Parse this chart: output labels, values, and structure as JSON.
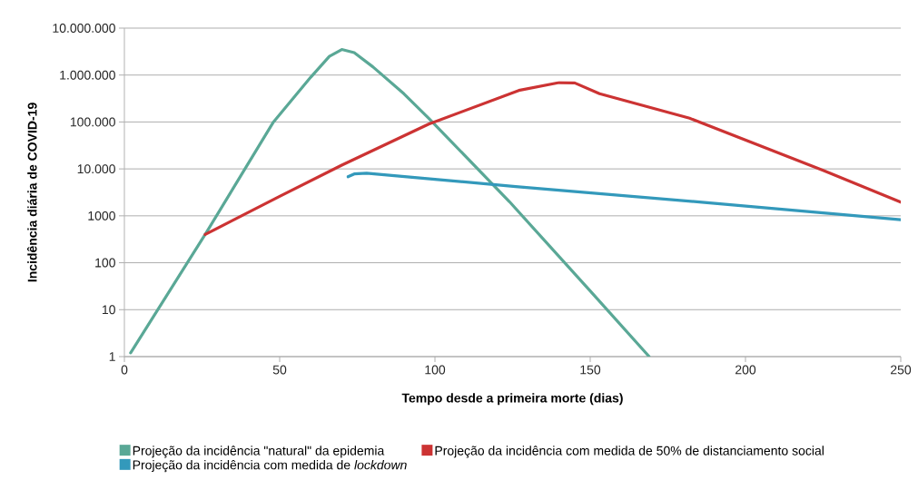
{
  "chart_data": {
    "type": "line",
    "xlabel": "Tempo desde a primeira morte (dias)",
    "ylabel": "Incidência diária de COVID-19",
    "xlim": [
      0,
      250
    ],
    "xticks": [
      0,
      50,
      100,
      150,
      200,
      250
    ],
    "ylim": [
      1,
      10000000
    ],
    "yticks": [
      {
        "value": 1,
        "label": "1"
      },
      {
        "value": 10,
        "label": "10"
      },
      {
        "value": 100,
        "label": "100"
      },
      {
        "value": 1000,
        "label": "1000"
      },
      {
        "value": 10000,
        "label": "10.000"
      },
      {
        "value": 100000,
        "label": "100.000"
      },
      {
        "value": 1000000,
        "label": "1.000.000"
      },
      {
        "value": 10000000,
        "label": "10.000.000"
      }
    ],
    "log": "y",
    "grid": "y",
    "legend": "bottom",
    "line_style": "solid",
    "marker": "none",
    "series": [
      {
        "name": "Projeção da incidência \"natural\" da epidemia",
        "color": "#5aa896",
        "x": [
          2,
          26,
          48,
          60,
          66,
          70,
          74,
          80,
          90,
          98,
          124,
          150,
          169
        ],
        "values": [
          1.2,
          400,
          100000,
          900000,
          2500000,
          3500000,
          3000000,
          1500000,
          400000,
          120000,
          2000,
          25,
          1
        ]
      },
      {
        "name": "Projeção da incidência com medida de 50% de distanciamento social",
        "color": "#cc3333",
        "x": [
          26,
          50,
          70,
          98,
          127,
          140,
          145,
          153,
          182,
          225,
          250
        ],
        "values": [
          400,
          2600,
          12000,
          90000,
          470000,
          690000,
          680000,
          400000,
          120000,
          9300,
          1950
        ]
      },
      {
        "name": "Projeção da incidência com medida de *lockdown*",
        "color": "#3399bb",
        "x": [
          72,
          74,
          78,
          100,
          126,
          186,
          250
        ],
        "values": [
          6800,
          7800,
          8100,
          6000,
          4200,
          1950,
          830
        ]
      }
    ]
  }
}
